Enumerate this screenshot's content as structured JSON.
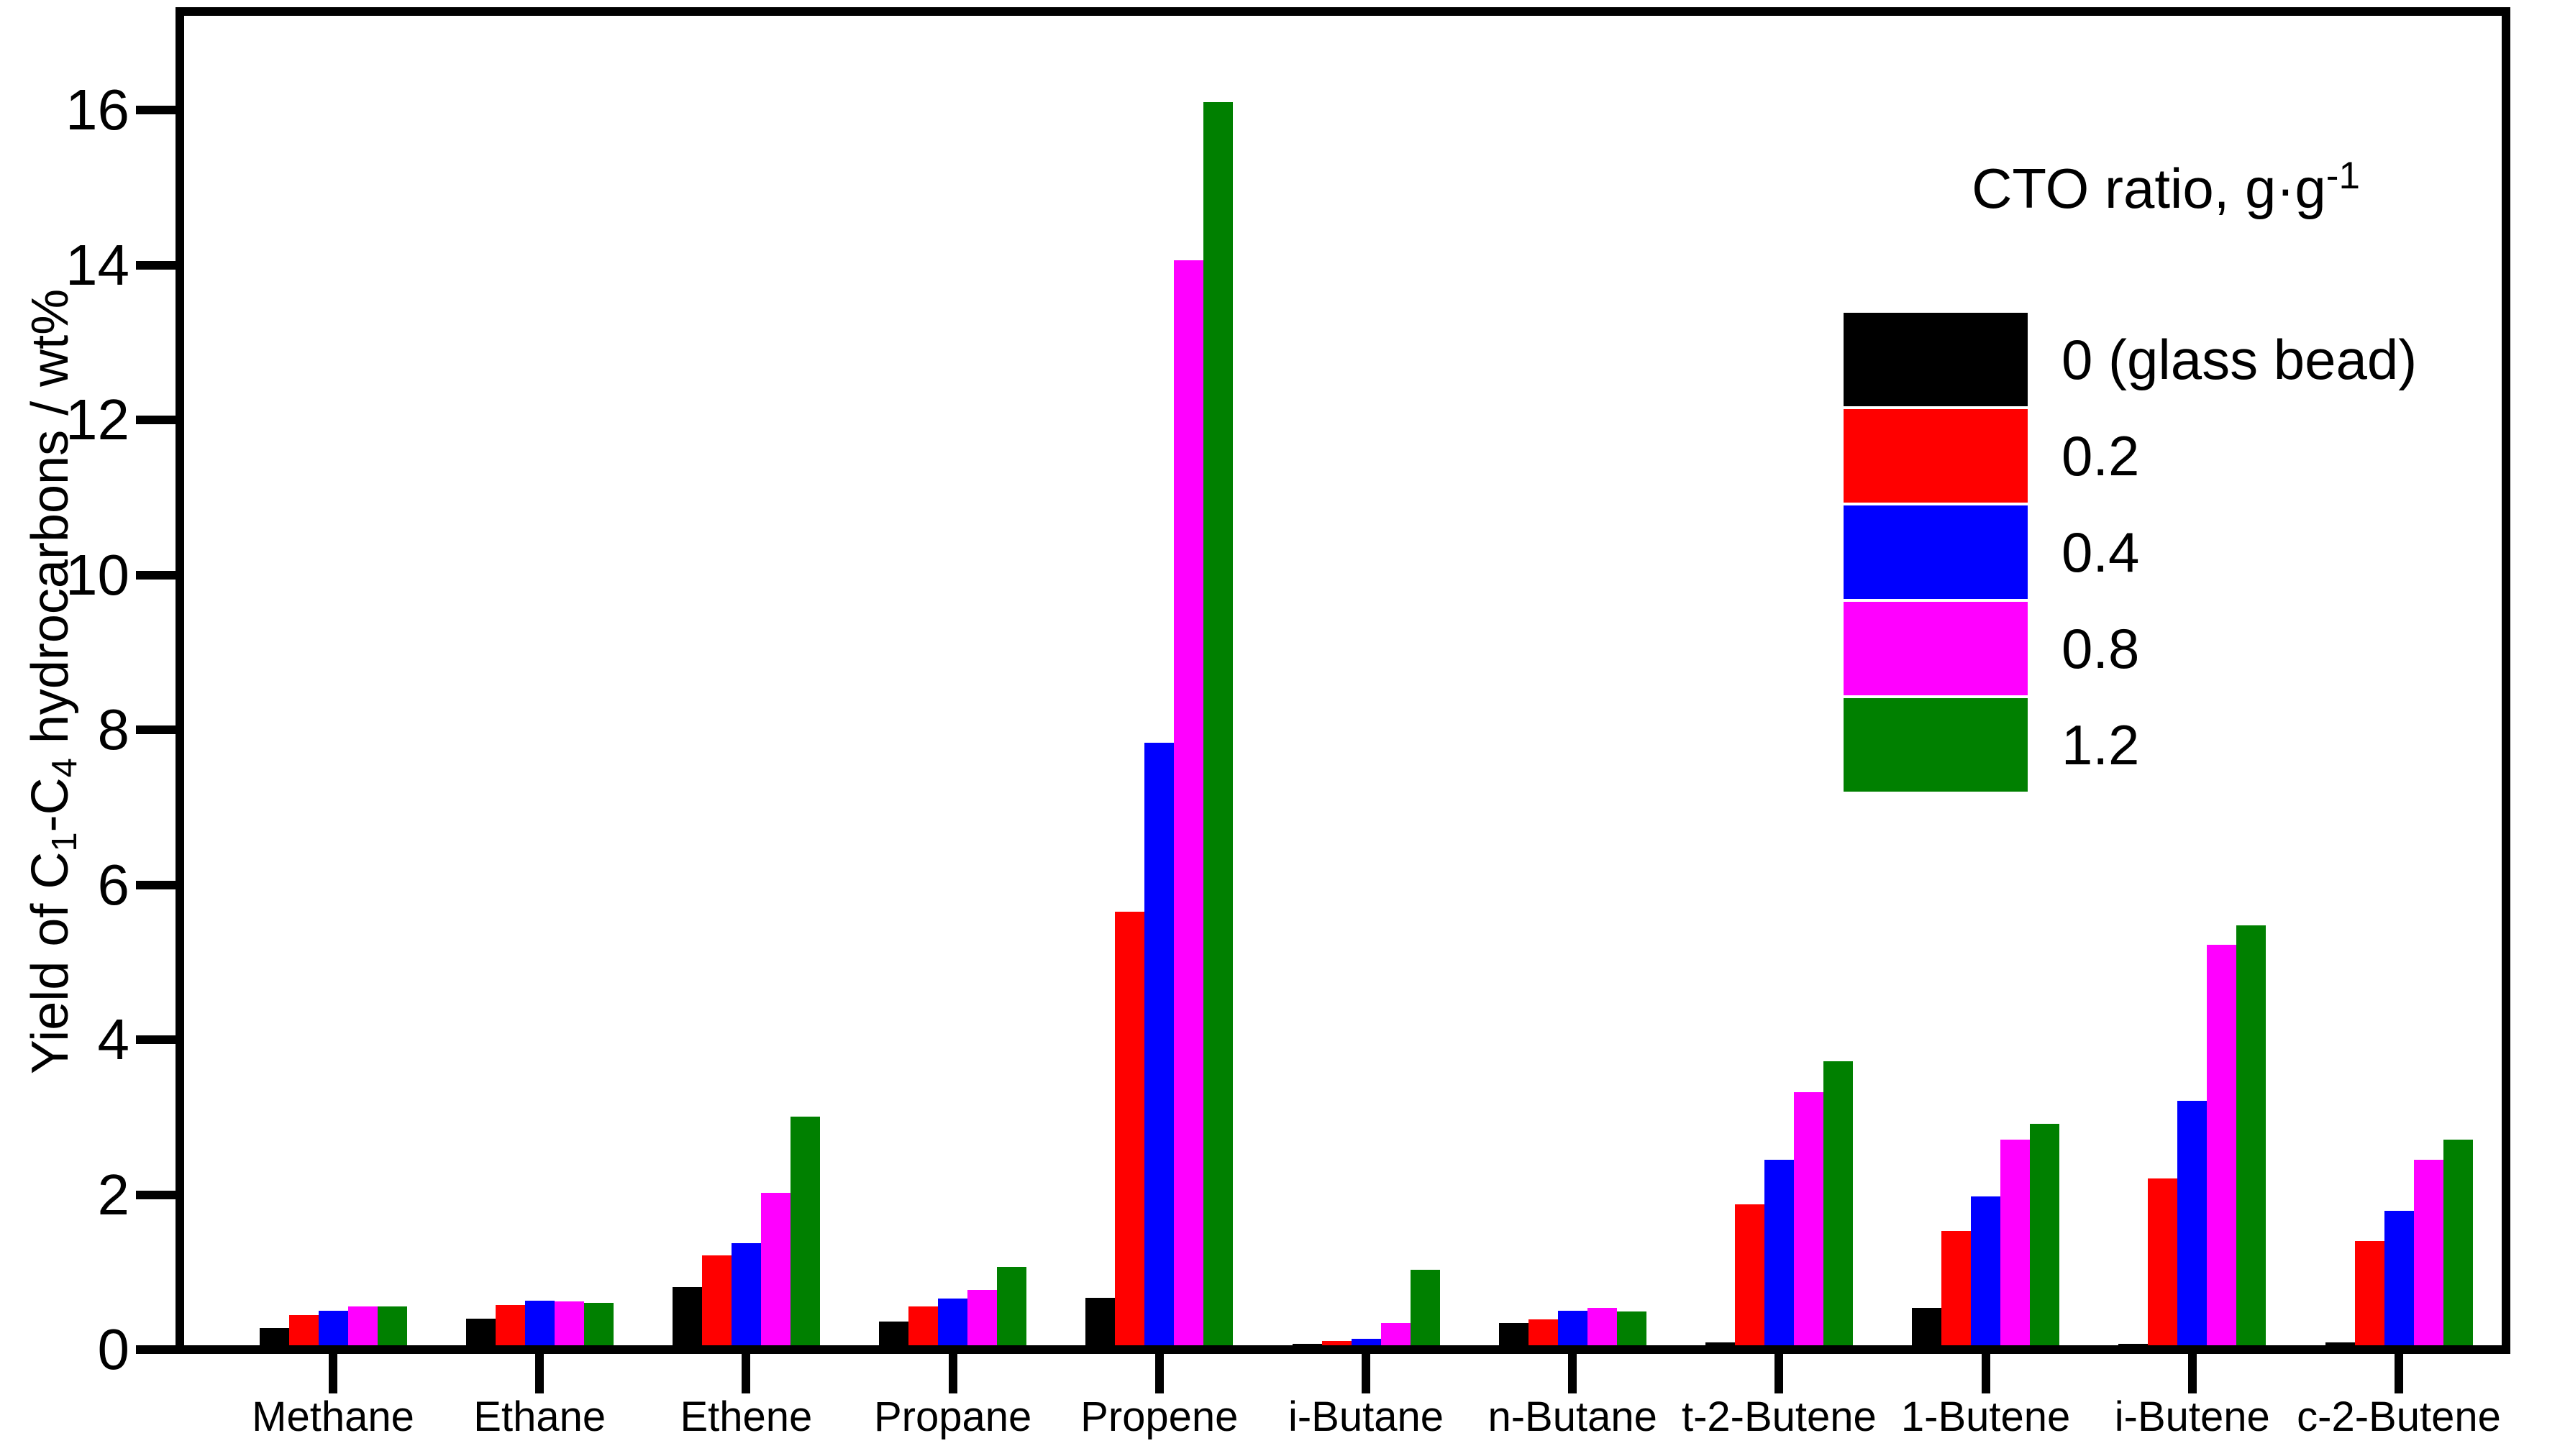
{
  "figure": {
    "background": "#ffffff",
    "axis_color": "#000000"
  },
  "y_axis": {
    "label_text": "Yield of C1-C4 hydrocarbons / wt%",
    "label_segments": [
      {
        "t": "Yield of C"
      },
      {
        "t": "1",
        "sub": true
      },
      {
        "t": "-C"
      },
      {
        "t": "4",
        "sub": true
      },
      {
        "t": " hydrocarbons / wt%"
      }
    ],
    "ticks": [
      0,
      2,
      4,
      6,
      8,
      10,
      12,
      14,
      16
    ]
  },
  "legend": {
    "title_text": "CTO ratio, g·g⁻¹",
    "title_segments": [
      {
        "t": "CTO ratio, g·g"
      },
      {
        "t": "-1",
        "sup": true
      }
    ],
    "entries": [
      {
        "label": "0 (glass bead)",
        "color": "#000000"
      },
      {
        "label": "0.2",
        "color": "#ff0000"
      },
      {
        "label": "0.4",
        "color": "#0000ff"
      },
      {
        "label": "0.8",
        "color": "#ff00ff"
      },
      {
        "label": "1.2",
        "color": "#008000"
      }
    ]
  },
  "chart_data": {
    "type": "bar",
    "title": "",
    "xlabel": "",
    "ylabel": "Yield of C1-C4 hydrocarbons / wt%",
    "ylim": [
      0,
      17.2
    ],
    "ytick_step": 2,
    "grid": false,
    "legend_position": "upper-right-inside",
    "legend_title": "CTO ratio, g·g⁻¹",
    "categories": [
      "Methane",
      "Ethane",
      "Ethene",
      "Propane",
      "Propene",
      "i-Butane",
      "n-Butane",
      "t-2-Butene",
      "1-Butene",
      "i-Butene",
      "c-2-Butene"
    ],
    "series": [
      {
        "name": "0 (glass bead)",
        "color": "#000000",
        "values": [
          0.22,
          0.34,
          0.75,
          0.31,
          0.61,
          0.02,
          0.29,
          0.04,
          0.48,
          0.02,
          0.04
        ]
      },
      {
        "name": "0.2",
        "color": "#ff0000",
        "values": [
          0.39,
          0.52,
          1.16,
          0.5,
          5.6,
          0.06,
          0.33,
          1.82,
          1.48,
          2.15,
          1.35
        ]
      },
      {
        "name": "0.4",
        "color": "#0000ff",
        "values": [
          0.45,
          0.58,
          1.32,
          0.6,
          7.78,
          0.08,
          0.45,
          2.39,
          1.92,
          3.16,
          1.74
        ]
      },
      {
        "name": "0.8",
        "color": "#ff00ff",
        "values": [
          0.5,
          0.57,
          1.97,
          0.71,
          14.0,
          0.29,
          0.48,
          3.27,
          2.65,
          5.17,
          2.39
        ]
      },
      {
        "name": "1.2",
        "color": "#008000",
        "values": [
          0.5,
          0.55,
          2.95,
          1.01,
          16.05,
          0.97,
          0.44,
          3.67,
          2.86,
          5.42,
          2.65
        ]
      }
    ]
  }
}
